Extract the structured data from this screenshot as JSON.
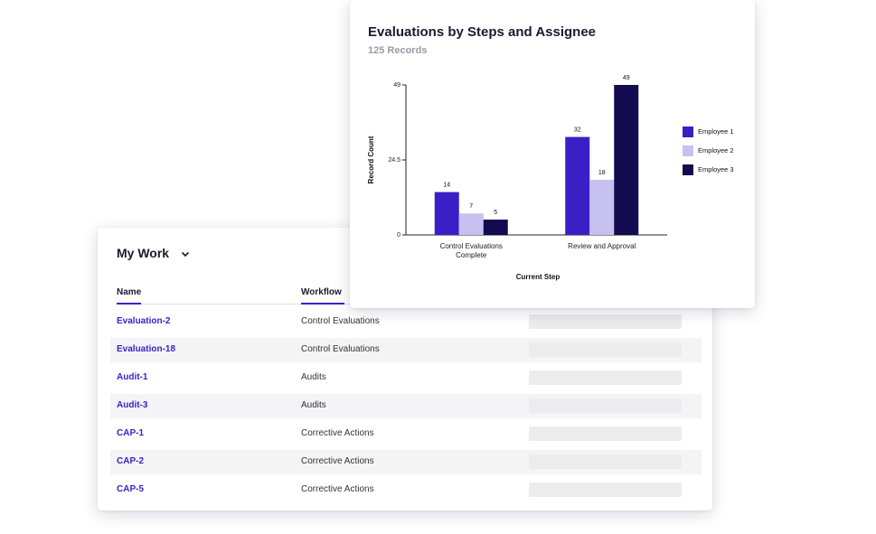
{
  "chart_data": {
    "type": "bar",
    "title": "Evaluations by Steps and Assignee",
    "subtitle": "125 Records",
    "xlabel": "Current Step",
    "ylabel": "Record Count",
    "categories": [
      "Control Evaluations Complete",
      "Review and Approval"
    ],
    "series": [
      {
        "name": "Employee 1",
        "color": "#3a1fc6",
        "values": [
          14,
          32
        ]
      },
      {
        "name": "Employee 2",
        "color": "#c6c1f0",
        "values": [
          7,
          18
        ]
      },
      {
        "name": "Employee 3",
        "color": "#130b50",
        "values": [
          5,
          49
        ]
      }
    ],
    "ylim": [
      0,
      49
    ],
    "yticks": [
      0,
      24.5,
      49
    ],
    "grid": false,
    "legend": "right"
  },
  "my_work": {
    "title": "My Work",
    "columns": [
      "Name",
      "Workflow"
    ],
    "rows": [
      [
        "Evaluation-2",
        "Control Evaluations"
      ],
      [
        "Evaluation-18",
        "Control Evaluations"
      ],
      [
        "Audit-1",
        "Audits"
      ],
      [
        "Audit-3",
        "Audits"
      ],
      [
        "CAP-1",
        "Corrective Actions"
      ],
      [
        "CAP-2",
        "Corrective Actions"
      ],
      [
        "CAP-5",
        "Corrective Actions"
      ]
    ]
  }
}
